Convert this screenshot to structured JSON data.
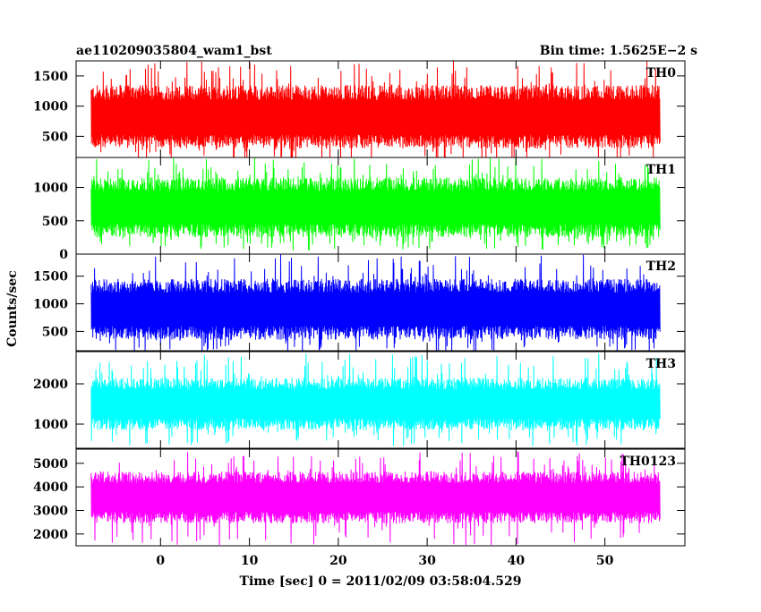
{
  "chart_data": {
    "type": "line",
    "title_left": "ae110209035804_wam1_bst",
    "title_right": "Bin time: 1.5625E−2 s",
    "xlabel": "Time [sec] 0 = 2011/02/09 03:58:04.529",
    "ylabel": "Counts/sec",
    "xlim": [
      -9.5,
      59
    ],
    "x_ticks": [
      0,
      10,
      20,
      30,
      40,
      50
    ],
    "x_tick_labels": [
      "0",
      "10",
      "20",
      "30",
      "40",
      "50"
    ],
    "data_x_range": [
      -7.8,
      56.2
    ],
    "bin_time": 0.015625,
    "grid": false,
    "panels": [
      {
        "name": "TH0",
        "color": "#ff0000",
        "ylim": [
          150,
          1750
        ],
        "y_ticks": [
          500,
          1000,
          1500
        ],
        "y_tick_labels": [
          "500",
          "1000",
          "1500"
        ],
        "mean": 800,
        "envelope_low": 300,
        "envelope_high": 1350,
        "min": 50,
        "max": 1750
      },
      {
        "name": "TH1",
        "color": "#00ff00",
        "ylim": [
          0,
          1450
        ],
        "y_ticks": [
          0,
          500,
          1000
        ],
        "y_tick_labels": [
          "0",
          "500",
          "1000"
        ],
        "mean": 700,
        "envelope_low": 250,
        "envelope_high": 1150,
        "min": 50,
        "max": 1450
      },
      {
        "name": "TH2",
        "color": "#0000ff",
        "ylim": [
          150,
          1900
        ],
        "y_ticks": [
          500,
          1000,
          1500
        ],
        "y_tick_labels": [
          "500",
          "1000",
          "1500"
        ],
        "mean": 900,
        "envelope_low": 350,
        "envelope_high": 1450,
        "min": 120,
        "max": 1900
      },
      {
        "name": "TH3",
        "color": "#00ffff",
        "ylim": [
          400,
          2800
        ],
        "y_ticks": [
          1000,
          2000
        ],
        "y_tick_labels": [
          "1000",
          "2000"
        ],
        "mean": 1500,
        "envelope_low": 850,
        "envelope_high": 2150,
        "min": 450,
        "max": 2750
      },
      {
        "name": "TH0123",
        "color": "#ff00ff",
        "ylim": [
          1500,
          5600
        ],
        "y_ticks": [
          2000,
          3000,
          4000,
          5000
        ],
        "y_tick_labels": [
          "2000",
          "3000",
          "4000",
          "5000"
        ],
        "mean": 3550,
        "envelope_low": 2450,
        "envelope_high": 4650,
        "min": 1500,
        "max": 5600
      }
    ]
  }
}
